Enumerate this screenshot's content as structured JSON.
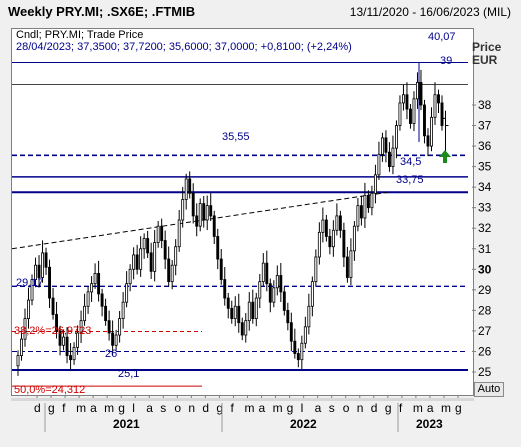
{
  "header": {
    "title": "Weekly PRY.MI; .SX6E; .FTMIB",
    "date_range": "13/11/2020 - 16/06/2023 (MIL)"
  },
  "legend": {
    "line1": "Cndl; PRY.MI; Trade Price",
    "line2": "28/04/2023; 37,3500; 37,7200; 35,6000; 37,0000; +0,8100; (+2,24%)"
  },
  "axis": {
    "y_title_1": "Price",
    "y_title_2": "EUR",
    "y_ticks": [
      "25",
      "26",
      "27",
      "28",
      "29",
      "30",
      "31",
      "32",
      "33",
      "34",
      "35",
      "36",
      "37",
      "38"
    ],
    "month_labels": [
      "d",
      "g",
      "f",
      "m",
      "a",
      "m",
      "g",
      "l",
      "a",
      "s",
      "o",
      "n",
      "d",
      "g",
      "f",
      "m",
      "a",
      "m",
      "g",
      "l",
      "a",
      "s",
      "o",
      "n",
      "d",
      "g",
      "f",
      "m",
      "a",
      "m",
      "g"
    ],
    "year_labels": [
      "2021",
      "2022",
      "2023"
    ]
  },
  "annotations": {
    "level_4007": "40,07",
    "level_39": "39",
    "level_3555": "35,55",
    "level_345": "34,5",
    "level_3375": "33,75",
    "level_2917": "29,17",
    "level_26": "26",
    "level_251": "25,1",
    "fib_382": "38,2%=26,9723",
    "fib_500": "50,0%=24,312"
  },
  "controls": {
    "auto_label": "Auto"
  },
  "colors": {
    "candle": "#000000",
    "level_line": "#00008b",
    "fib_line": "#cc0000",
    "arrow": "#1a8a1a"
  },
  "chart_data": {
    "type": "candlestick",
    "title": "Weekly PRY.MI; .SX6E; .FTMIB",
    "ylabel": "Price EUR",
    "ylim": [
      24.6,
      40.3
    ],
    "x_range": [
      "13/11/2020",
      "16/06/2023"
    ],
    "grid": false,
    "last_bar": {
      "date": "28/04/2023",
      "open": 37.35,
      "high": 37.72,
      "low": 35.6,
      "close": 37.0,
      "change": 0.81,
      "change_pct": 2.24
    },
    "weekly_closes": [
      25.8,
      26.6,
      27.6,
      28.5,
      29.5,
      30.2,
      29.6,
      30.8,
      30.1,
      28.6,
      27.8,
      27.0,
      26.3,
      26.7,
      25.8,
      25.6,
      26.2,
      26.9,
      27.5,
      28.2,
      28.9,
      29.3,
      29.8,
      28.8,
      28.2,
      27.5,
      26.9,
      26.3,
      26.8,
      27.6,
      28.4,
      29.3,
      30.0,
      30.7,
      30.0,
      31.0,
      31.5,
      30.8,
      29.9,
      31.3,
      32.1,
      31.4,
      30.5,
      29.4,
      30.2,
      31.1,
      32.4,
      33.4,
      34.4,
      33.7,
      32.6,
      32.1,
      33.2,
      32.4,
      33.1,
      32.6,
      31.6,
      30.5,
      29.5,
      28.6,
      28.1,
      27.6,
      28.2,
      27.4,
      26.8,
      27.5,
      28.4,
      27.6,
      28.6,
      29.4,
      30.3,
      29.3,
      28.4,
      29.1,
      29.7,
      28.9,
      28.0,
      27.4,
      26.5,
      25.9,
      25.6,
      26.4,
      27.2,
      28.2,
      29.4,
      30.6,
      31.8,
      32.4,
      31.6,
      31.1,
      31.9,
      32.6,
      31.9,
      30.6,
      29.6,
      30.9,
      32.1,
      33.1,
      32.5,
      33.6,
      33.0,
      33.7,
      34.6,
      35.6,
      36.4,
      35.7,
      35.0,
      35.9,
      37.0,
      38.1,
      38.5,
      37.8,
      37.1,
      38.3,
      39.1,
      38.0,
      36.5,
      36.0,
      37.4,
      38.5,
      38.1,
      37.0
    ]
  }
}
